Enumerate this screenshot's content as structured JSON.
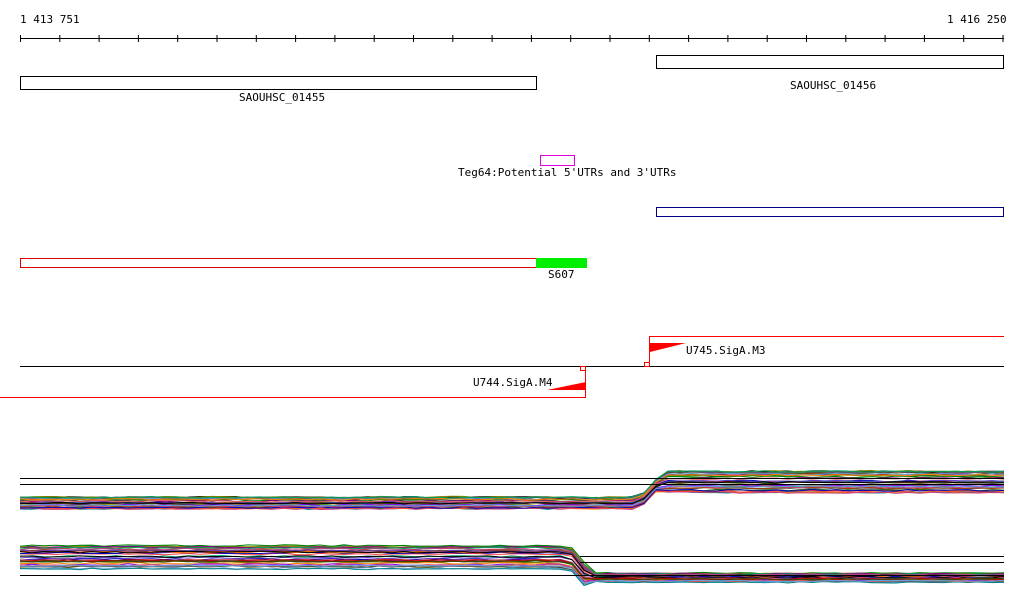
{
  "coords": {
    "start": "1 413 751",
    "end": "1 416 250"
  },
  "genes": [
    {
      "id": "SAOUHSC_01455"
    },
    {
      "id": "SAOUHSC_01456"
    }
  ],
  "annotations": {
    "utr": "Teg64:Potential 5'UTRs and 3'UTRs",
    "srna": "S607"
  },
  "promoters": [
    {
      "id": "U745.SigA.M3",
      "strand": "+"
    },
    {
      "id": "U744.SigA.M4",
      "strand": "-"
    }
  ],
  "colors": {
    "gene_box": "#000000",
    "utr_box": "#e000e0",
    "feature_blue": "#000080",
    "feature_red": "#dd0000",
    "srna_fill": "#00ee00",
    "promoter": "#ff0000"
  }
}
